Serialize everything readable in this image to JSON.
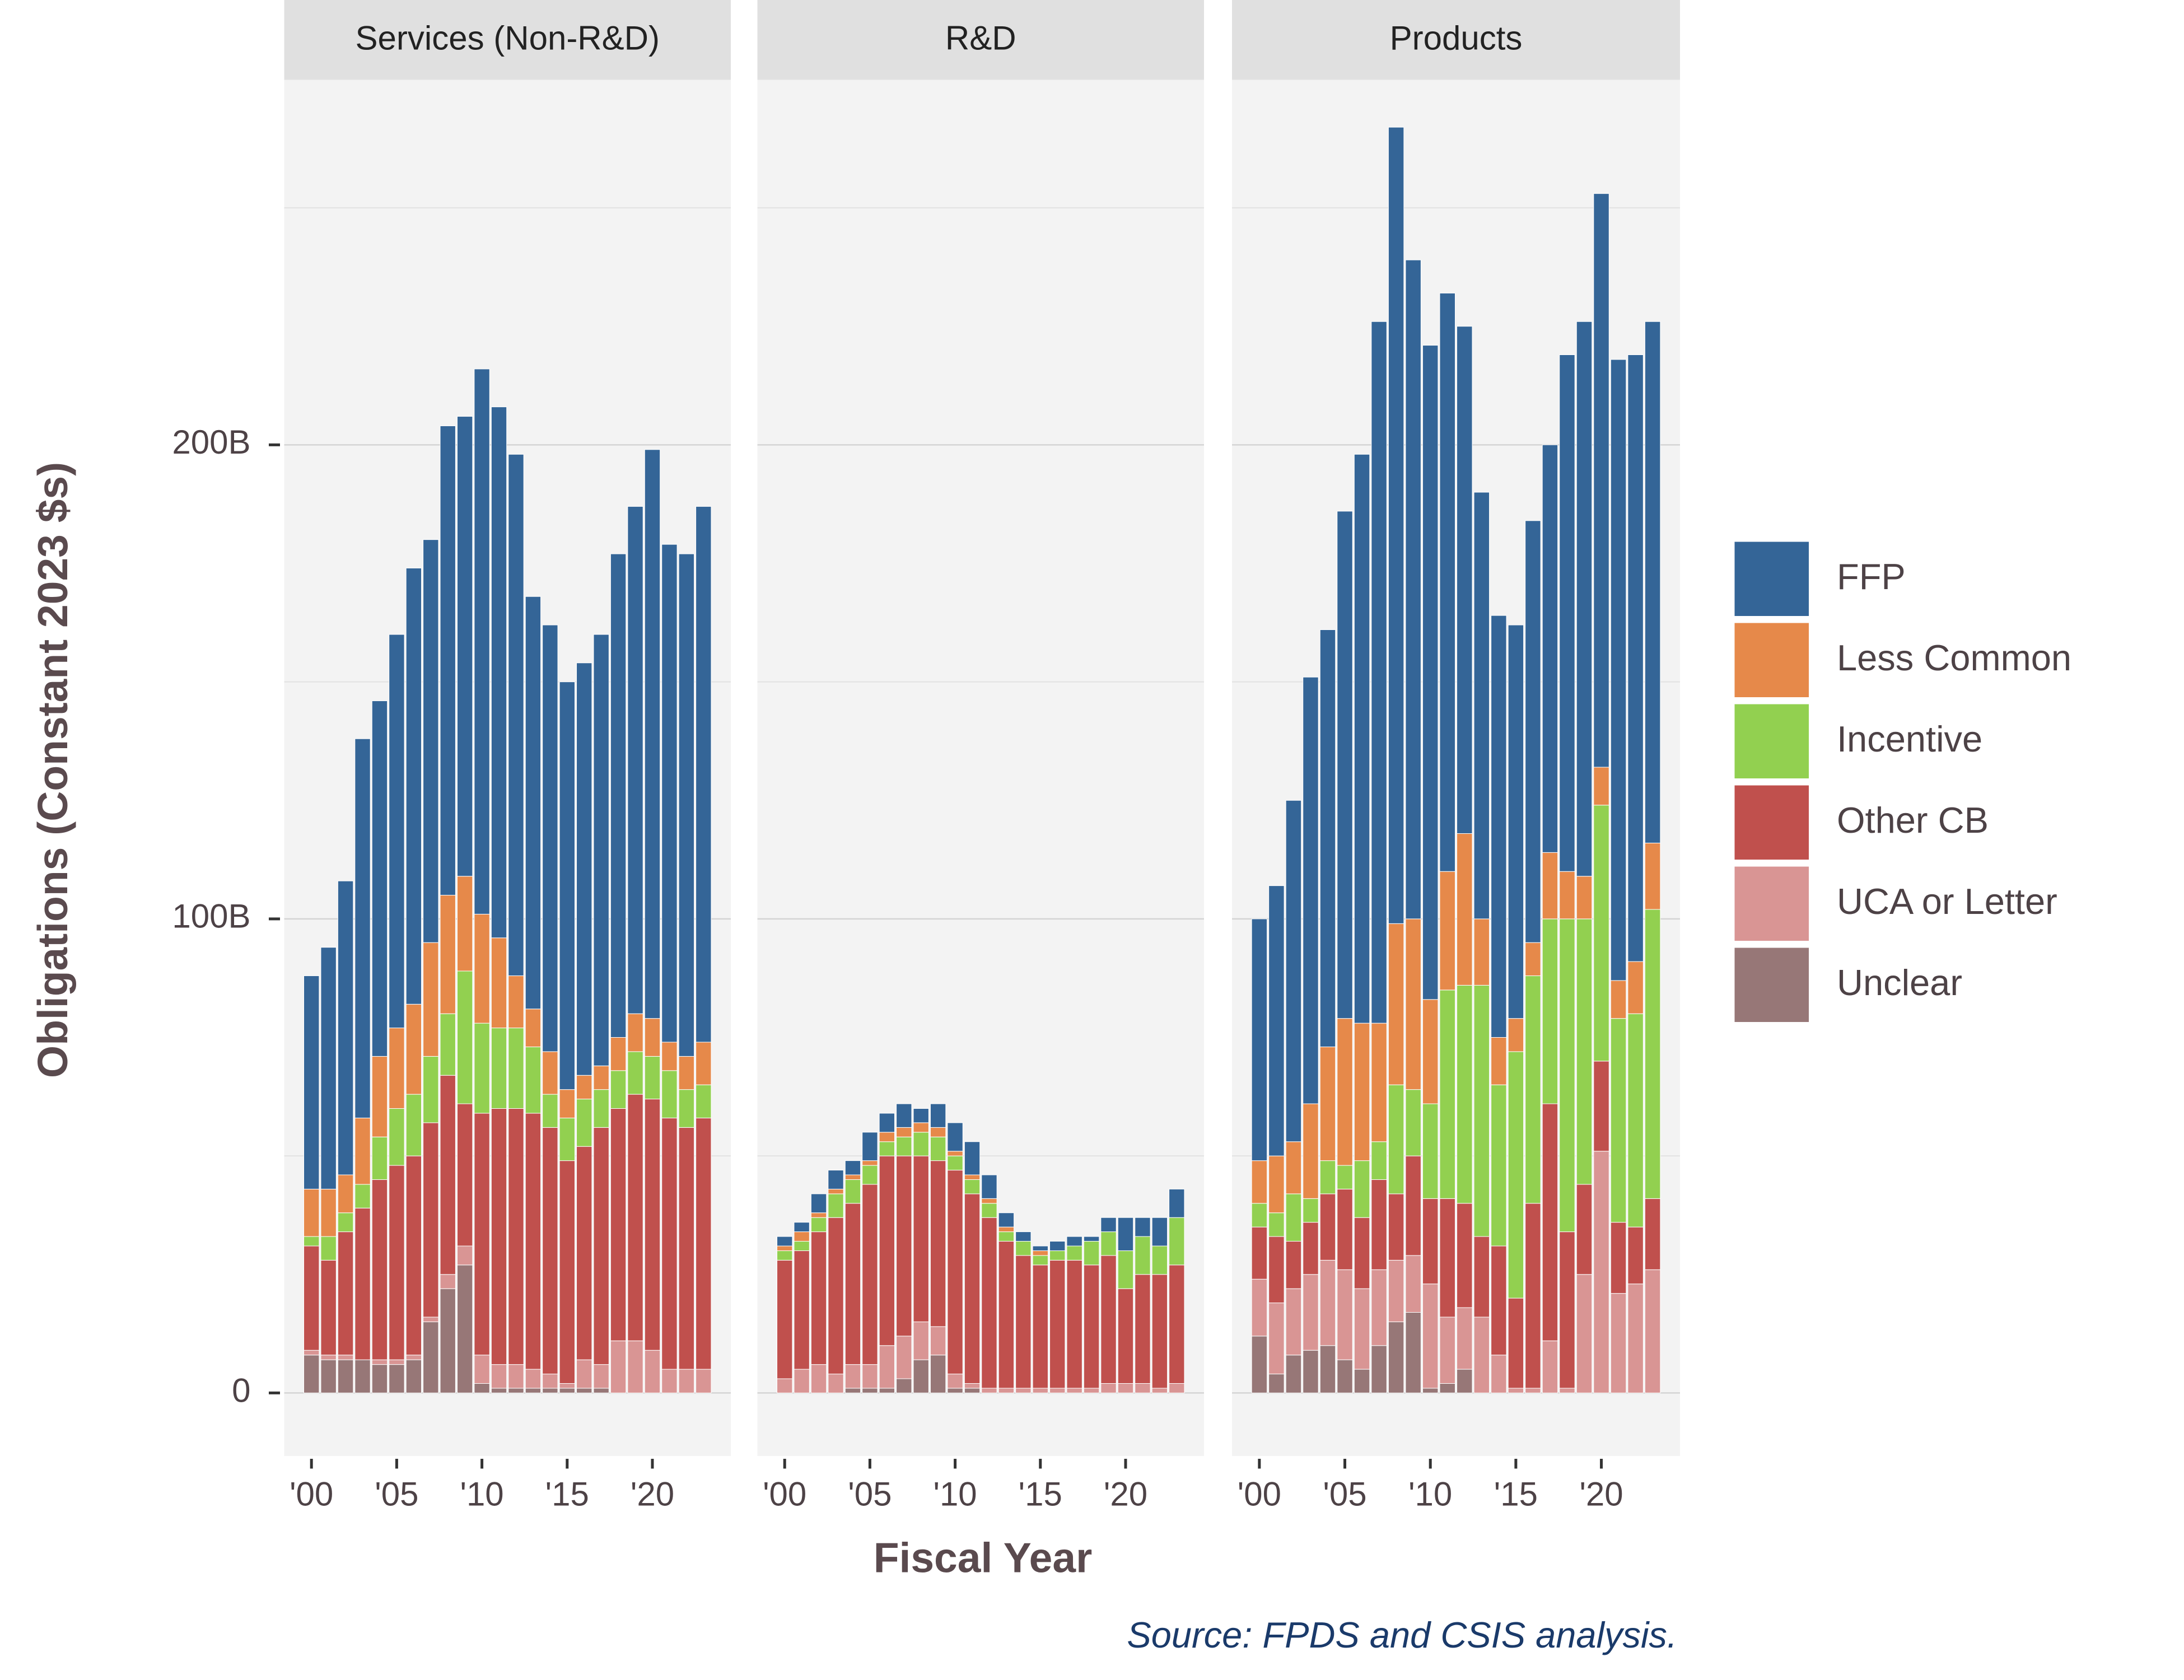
{
  "ylabel": "Obligations (Constant 2023 $s)",
  "xlabel": "Fiscal Year",
  "source": "Source: FPDS and CSIS analysis.",
  "chart_data": [
    {
      "type": "bar",
      "stacked": true,
      "title": "Services (Non-R&D)",
      "x": [
        2000,
        2001,
        2002,
        2003,
        2004,
        2005,
        2006,
        2007,
        2008,
        2009,
        2010,
        2011,
        2012,
        2013,
        2014,
        2015,
        2016,
        2017,
        2018,
        2019,
        2020,
        2021,
        2022,
        2023
      ],
      "xlim": [
        1998.4,
        2024.6
      ],
      "xticks": [
        {
          "value": 2000,
          "label": "'00"
        },
        {
          "value": 2005,
          "label": "'05"
        },
        {
          "value": 2010,
          "label": "'10"
        },
        {
          "value": 2015,
          "label": "'15"
        },
        {
          "value": 2020,
          "label": "'20"
        }
      ],
      "ylim": [
        -13.3,
        277
      ],
      "yticks": [
        0,
        {
          "value": 100,
          "label": "100B"
        },
        {
          "value": 200,
          "label": "200B"
        }
      ],
      "minor_yticks": [
        50,
        150,
        250
      ],
      "series": [
        {
          "name": "FFP",
          "color": "#346597",
          "values": [
            45,
            51,
            62,
            80,
            75,
            83,
            92,
            85,
            99,
            97,
            115,
            112,
            110,
            87,
            90,
            86,
            87,
            91,
            102,
            107,
            120,
            105,
            106,
            113
          ]
        },
        {
          "name": "Less Common",
          "color": "#e6894a",
          "values": [
            10,
            10,
            8,
            14,
            17,
            17,
            19,
            24,
            25,
            20,
            23,
            19,
            11,
            8,
            9,
            6,
            5,
            5,
            7,
            8,
            8,
            6,
            7,
            9
          ]
        },
        {
          "name": "Incentive",
          "color": "#92d050",
          "values": [
            2,
            5,
            4,
            5,
            9,
            12,
            13,
            14,
            13,
            28,
            19,
            17,
            17,
            14,
            7,
            9,
            10,
            8,
            8,
            9,
            9,
            10,
            8,
            7
          ]
        },
        {
          "name": "Other CB",
          "color": "#c0504d",
          "values": [
            22,
            20,
            26,
            32,
            38,
            41,
            42,
            41,
            42,
            30,
            51,
            54,
            54,
            54,
            52,
            47,
            45,
            50,
            49,
            52,
            53,
            53,
            51,
            53
          ]
        },
        {
          "name": "UCA or Letter",
          "color": "#d99594",
          "values": [
            1,
            1,
            1,
            0,
            1,
            1,
            1,
            1,
            3,
            4,
            6,
            5,
            5,
            4,
            3,
            1,
            6,
            5,
            11,
            11,
            9,
            5,
            5,
            5
          ]
        },
        {
          "name": "Unclear",
          "color": "#977777",
          "values": [
            8,
            7,
            7,
            7,
            6,
            6,
            7,
            15,
            22,
            27,
            2,
            1,
            1,
            1,
            1,
            1,
            1,
            1,
            0,
            0,
            0,
            0,
            0,
            0
          ]
        }
      ]
    },
    {
      "type": "bar",
      "stacked": true,
      "title": "R&D",
      "x": [
        2000,
        2001,
        2002,
        2003,
        2004,
        2005,
        2006,
        2007,
        2008,
        2009,
        2010,
        2011,
        2012,
        2013,
        2014,
        2015,
        2016,
        2017,
        2018,
        2019,
        2020,
        2021,
        2022,
        2023
      ],
      "xlim": [
        1998.4,
        2024.6
      ],
      "xticks": [
        {
          "value": 2000,
          "label": "'00"
        },
        {
          "value": 2005,
          "label": "'05"
        },
        {
          "value": 2010,
          "label": "'10"
        },
        {
          "value": 2015,
          "label": "'15"
        },
        {
          "value": 2020,
          "label": "'20"
        }
      ],
      "ylim": [
        -13.3,
        277
      ],
      "yticks": [
        0,
        {
          "value": 100,
          "label": "100B"
        },
        {
          "value": 200,
          "label": "200B"
        }
      ],
      "minor_yticks": [
        50,
        150,
        250
      ],
      "series": [
        {
          "name": "FFP",
          "color": "#346597",
          "values": [
            2,
            2,
            4,
            4,
            3,
            6,
            4,
            5,
            3,
            5,
            6,
            7,
            5,
            3,
            2,
            1,
            2,
            2,
            1,
            3,
            7,
            4,
            6,
            6
          ]
        },
        {
          "name": "Less Common",
          "color": "#e6894a",
          "values": [
            1,
            2,
            1,
            1,
            1,
            1,
            2,
            2,
            2,
            2,
            1,
            1,
            1,
            1,
            0,
            1,
            0,
            0,
            0,
            0,
            0,
            0,
            0,
            0
          ]
        },
        {
          "name": "Incentive",
          "color": "#92d050",
          "values": [
            2,
            2,
            3,
            5,
            5,
            4,
            3,
            4,
            5,
            5,
            3,
            3,
            3,
            2,
            3,
            2,
            2,
            3,
            5,
            5,
            8,
            8,
            6,
            10
          ]
        },
        {
          "name": "Other CB",
          "color": "#c0504d",
          "values": [
            25,
            25,
            28,
            33,
            34,
            38,
            40,
            38,
            35,
            35,
            43,
            40,
            36,
            31,
            28,
            26,
            27,
            27,
            26,
            27,
            20,
            23,
            24,
            25
          ]
        },
        {
          "name": "UCA or Letter",
          "color": "#d99594",
          "values": [
            3,
            5,
            6,
            4,
            5,
            5,
            9,
            9,
            8,
            6,
            3,
            1,
            1,
            1,
            1,
            1,
            1,
            1,
            1,
            2,
            2,
            2,
            1,
            2
          ]
        },
        {
          "name": "Unclear",
          "color": "#977777",
          "values": [
            0,
            0,
            0,
            0,
            1,
            1,
            1,
            3,
            7,
            8,
            1,
            1,
            0,
            0,
            0,
            0,
            0,
            0,
            0,
            0,
            0,
            0,
            0,
            0
          ]
        }
      ]
    },
    {
      "type": "bar",
      "stacked": true,
      "title": "Products",
      "x": [
        2000,
        2001,
        2002,
        2003,
        2004,
        2005,
        2006,
        2007,
        2008,
        2009,
        2010,
        2011,
        2012,
        2013,
        2014,
        2015,
        2016,
        2017,
        2018,
        2019,
        2020,
        2021,
        2022,
        2023
      ],
      "xlim": [
        1998.4,
        2024.6
      ],
      "xticks": [
        {
          "value": 2000,
          "label": "'00"
        },
        {
          "value": 2005,
          "label": "'05"
        },
        {
          "value": 2010,
          "label": "'10"
        },
        {
          "value": 2015,
          "label": "'15"
        },
        {
          "value": 2020,
          "label": "'20"
        }
      ],
      "ylim": [
        -13.3,
        277
      ],
      "yticks": [
        0,
        {
          "value": 100,
          "label": "100B"
        },
        {
          "value": 200,
          "label": "200B"
        }
      ],
      "minor_yticks": [
        50,
        150,
        250
      ],
      "series": [
        {
          "name": "FFP",
          "color": "#346597",
          "values": [
            51,
            57,
            72,
            90,
            88,
            107,
            120,
            148,
            168,
            139,
            138,
            122,
            107,
            90,
            89,
            83,
            89,
            86,
            109,
            117,
            121,
            131,
            128,
            110
          ]
        },
        {
          "name": "Less Common",
          "color": "#e6894a",
          "values": [
            9,
            12,
            11,
            20,
            24,
            31,
            29,
            25,
            34,
            36,
            22,
            25,
            32,
            14,
            10,
            7,
            7,
            14,
            10,
            9,
            8,
            8,
            11,
            14
          ]
        },
        {
          "name": "Incentive",
          "color": "#92d050",
          "values": [
            5,
            5,
            10,
            5,
            7,
            5,
            12,
            8,
            23,
            14,
            20,
            44,
            46,
            53,
            34,
            52,
            48,
            39,
            66,
            56,
            54,
            43,
            45,
            61
          ]
        },
        {
          "name": "Other CB",
          "color": "#c0504d",
          "values": [
            11,
            14,
            10,
            11,
            14,
            17,
            15,
            19,
            14,
            21,
            18,
            25,
            22,
            17,
            23,
            19,
            39,
            50,
            33,
            19,
            19,
            15,
            12,
            15
          ]
        },
        {
          "name": "UCA or Letter",
          "color": "#d99594",
          "values": [
            12,
            15,
            14,
            16,
            18,
            19,
            17,
            16,
            13,
            12,
            22,
            14,
            13,
            16,
            8,
            1,
            1,
            11,
            1,
            25,
            51,
            21,
            23,
            26
          ]
        },
        {
          "name": "Unclear",
          "color": "#977777",
          "values": [
            12,
            4,
            8,
            9,
            10,
            7,
            5,
            10,
            15,
            17,
            1,
            2,
            5,
            0,
            0,
            0,
            0,
            0,
            0,
            0,
            0,
            0,
            0,
            0
          ]
        }
      ]
    }
  ]
}
